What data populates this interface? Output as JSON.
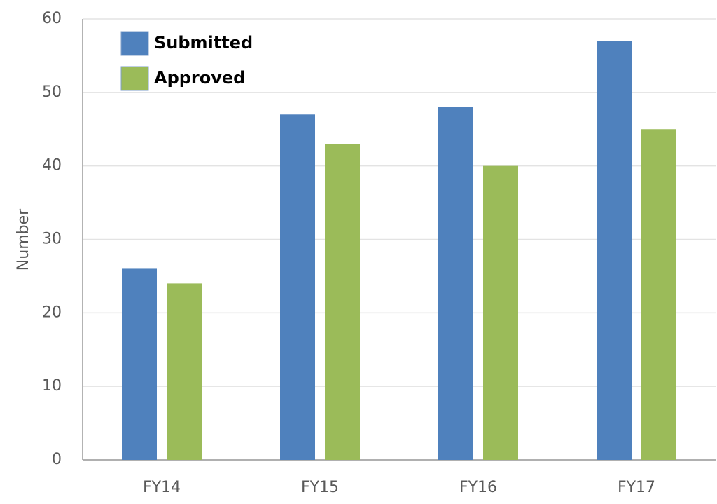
{
  "chart_data": {
    "type": "bar",
    "y_label": "Number",
    "categories": [
      "FY14",
      "FY15",
      "FY16",
      "FY17"
    ],
    "series": [
      {
        "name": "Submitted",
        "color": "#4f81bd",
        "values": [
          26,
          47,
          48,
          57
        ]
      },
      {
        "name": "Approved",
        "color": "#9bbb59",
        "values": [
          24,
          43,
          40,
          45
        ]
      }
    ],
    "ylim": [
      0,
      60
    ],
    "yticks": [
      0,
      10,
      20,
      30,
      40,
      50,
      60
    ],
    "grid": true,
    "legend": "top-left"
  }
}
